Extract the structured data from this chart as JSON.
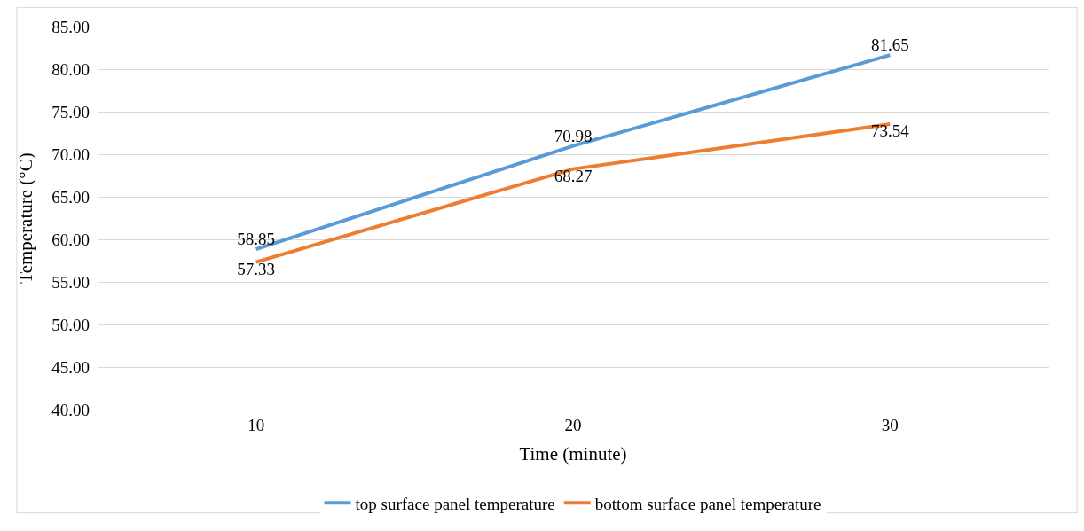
{
  "chart_data": {
    "type": "line",
    "xlabel": "Time (minute)",
    "ylabel": "Temperature (°C)",
    "categories": [
      "10",
      "20",
      "30"
    ],
    "series": [
      {
        "name": "top surface panel temperature",
        "color": "#5b9bd5",
        "values": [
          58.85,
          70.98,
          81.65
        ]
      },
      {
        "name": "bottom surface panel temperature",
        "color": "#ed7d31",
        "values": [
          57.33,
          68.27,
          73.54
        ]
      }
    ],
    "ylim": [
      40,
      85
    ],
    "yticks": [
      {
        "value": 40,
        "label": "40.00"
      },
      {
        "value": 45,
        "label": "45.00"
      },
      {
        "value": 50,
        "label": "50.00"
      },
      {
        "value": 55,
        "label": "55.00"
      },
      {
        "value": 60,
        "label": "60.00"
      },
      {
        "value": 65,
        "label": "65.00"
      },
      {
        "value": 70,
        "label": "70.00"
      },
      {
        "value": 75,
        "label": "75.00"
      },
      {
        "value": 80,
        "label": "80.00"
      },
      {
        "value": 85,
        "label": "85.00"
      }
    ],
    "grid": "y",
    "legend": "bottom",
    "data_labels": true,
    "marker": "none",
    "line_style": "solid"
  }
}
